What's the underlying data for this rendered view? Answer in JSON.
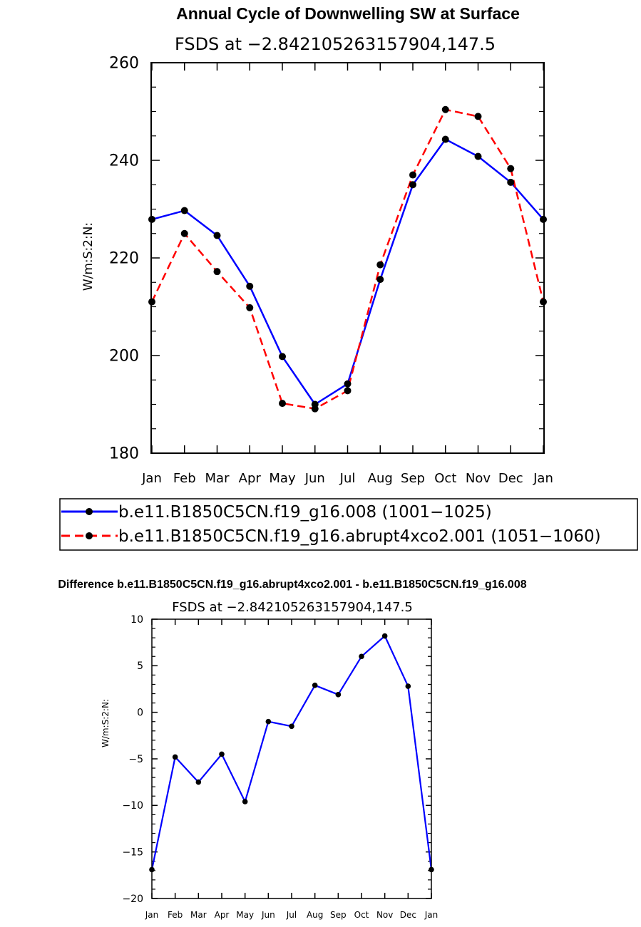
{
  "chart_data": [
    {
      "type": "line",
      "title": "Annual Cycle of Downwelling SW at Surface",
      "subtitle": "FSDS at −2.842105263157904,147.5",
      "ylabel": "W/m:S:2:N:",
      "xlabel": "",
      "ylim": [
        180,
        260
      ],
      "yticks": [
        180,
        200,
        220,
        240,
        260
      ],
      "ytick_labels": [
        "180",
        "200",
        "220",
        "240",
        "260"
      ],
      "categories": [
        "Jan",
        "Feb",
        "Mar",
        "Apr",
        "May",
        "Jun",
        "Jul",
        "Aug",
        "Sep",
        "Oct",
        "Nov",
        "Dec",
        "Jan"
      ],
      "series": [
        {
          "name": "b.e11.B1850C5CN.f19_g16.008 (1001−1025)",
          "color": "#0000ff",
          "dash": "solid",
          "values": [
            227.9,
            229.7,
            224.6,
            214.2,
            199.8,
            190.0,
            194.2,
            215.6,
            235.0,
            244.3,
            240.8,
            235.5,
            227.9
          ]
        },
        {
          "name": "b.e11.B1850C5CN.f19_g16.abrupt4xco2.001 (1051−1060)",
          "color": "#ff0000",
          "dash": "dashed",
          "values": [
            211.0,
            225.0,
            217.2,
            209.8,
            190.2,
            189.1,
            192.8,
            218.6,
            237.0,
            250.4,
            249.0,
            238.3,
            211.0
          ]
        }
      ],
      "legend_position": "bottom"
    },
    {
      "type": "line",
      "title": "Difference b.e11.B1850C5CN.f19_g16.abrupt4xco2.001 - b.e11.B1850C5CN.f19_g16.008",
      "subtitle": "FSDS at −2.842105263157904,147.5",
      "ylabel": "W/m:S:2:N:",
      "xlabel": "",
      "ylim": [
        -20,
        10
      ],
      "yticks": [
        -20,
        -15,
        -10,
        -5,
        0,
        5,
        10
      ],
      "ytick_labels": [
        "−20",
        "−15",
        "−10",
        "−5",
        "0",
        "5",
        "10"
      ],
      "categories": [
        "Jan",
        "Feb",
        "Mar",
        "Apr",
        "May",
        "Jun",
        "Jul",
        "Aug",
        "Sep",
        "Oct",
        "Nov",
        "Dec",
        "Jan"
      ],
      "series": [
        {
          "name": "difference",
          "color": "#0000ff",
          "dash": "solid",
          "values": [
            -16.9,
            -4.8,
            -7.5,
            -4.5,
            -9.6,
            -1.0,
            -1.5,
            2.9,
            1.9,
            6.0,
            8.2,
            2.8,
            -16.9
          ]
        }
      ]
    }
  ]
}
